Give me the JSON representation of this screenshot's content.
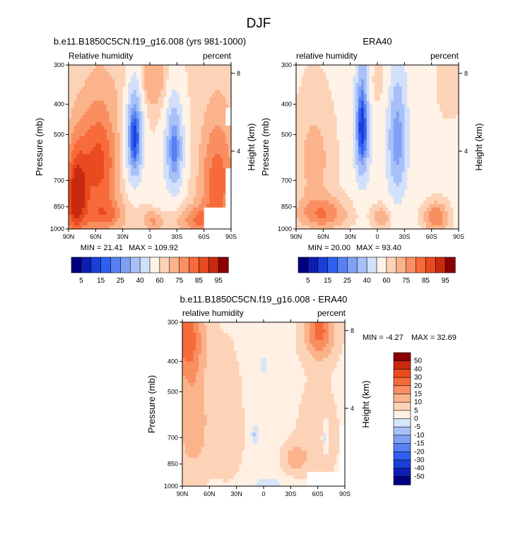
{
  "page_title": "DJF",
  "colors": {
    "main": [
      "#00007f",
      "#0d1fb2",
      "#1a3fd9",
      "#2f5ff0",
      "#5680f3",
      "#7fa0f5",
      "#a8c0f8",
      "#d2e0fb",
      "#fff2e6",
      "#fdd3b8",
      "#fbb38b",
      "#f98f60",
      "#f76a3a",
      "#e94a1f",
      "#c82a10",
      "#8b0000"
    ],
    "diff": [
      "#00007f",
      "#0d1fb2",
      "#1a3fd9",
      "#2f5ff0",
      "#5680f3",
      "#7fa0f5",
      "#a8c0f8",
      "#d6e5fa",
      "#fff0e3",
      "#fdd3b8",
      "#fbb38b",
      "#f98f60",
      "#f76a3a",
      "#e94a1f",
      "#c82a10",
      "#8b0000"
    ],
    "missing": "#ffffff"
  },
  "chart_data": [
    {
      "type": "heatmap",
      "title": "b.e11.B1850C5CN.f19_g16.008 (yrs 981-1000)",
      "left_label": "Relative humidity",
      "right_label": "percent",
      "ylabel": "Pressure (mb)",
      "ylabel_right": "Height (km)",
      "x_ticks": [
        "90N",
        "60N",
        "30N",
        "0",
        "30S",
        "60S",
        "90S"
      ],
      "x_range": [
        90,
        -90
      ],
      "y_ticks": [
        "300",
        "400",
        "500",
        "700",
        "850",
        "1000"
      ],
      "y_tick_values": [
        300,
        400,
        500,
        700,
        850,
        1000
      ],
      "y_range": [
        300,
        1000
      ],
      "height_ticks": [
        "8",
        "4"
      ],
      "height_tick_values": [
        8,
        4
      ],
      "min_text": "MIN = 21.41",
      "max_text": "MAX = 109.92",
      "field": "model",
      "colorbar": {
        "orientation": "horizontal",
        "labels": [
          "5",
          "15",
          "25",
          "40",
          "60",
          "75",
          "85",
          "95"
        ]
      }
    },
    {
      "type": "heatmap",
      "title": "ERA40",
      "left_label": "relative humidity",
      "right_label": "percent",
      "ylabel": "Pressure (mb)",
      "ylabel_right": "Height (km)",
      "x_ticks": [
        "90N",
        "60N",
        "30N",
        "0",
        "30S",
        "60S",
        "90S"
      ],
      "x_range": [
        90,
        -90
      ],
      "y_ticks": [
        "300",
        "400",
        "500",
        "700",
        "850",
        "1000"
      ],
      "y_tick_values": [
        300,
        400,
        500,
        700,
        850,
        1000
      ],
      "y_range": [
        300,
        1000
      ],
      "height_ticks": [
        "8",
        "4"
      ],
      "height_tick_values": [
        8,
        4
      ],
      "min_text": "MIN = 20.00",
      "max_text": "MAX = 93.40",
      "field": "era",
      "colorbar": {
        "orientation": "horizontal",
        "labels": [
          "5",
          "15",
          "25",
          "40",
          "60",
          "75",
          "85",
          "95"
        ]
      }
    },
    {
      "type": "heatmap",
      "title": "b.e11.B1850C5CN.f19_g16.008 - ERA40",
      "left_label": "relative humidity",
      "right_label": "percent",
      "ylabel": "Pressure (mb)",
      "ylabel_right": "Height (km)",
      "x_ticks": [
        "90N",
        "60N",
        "30N",
        "0",
        "30S",
        "60S",
        "90S"
      ],
      "x_range": [
        90,
        -90
      ],
      "y_ticks": [
        "300",
        "400",
        "500",
        "700",
        "850",
        "1000"
      ],
      "y_tick_values": [
        300,
        400,
        500,
        700,
        850,
        1000
      ],
      "y_range": [
        300,
        1000
      ],
      "height_ticks": [
        "8",
        "4"
      ],
      "height_tick_values": [
        8,
        4
      ],
      "min_text": "MIN = -4.27",
      "max_text": "MAX = 32.69",
      "field": "diff",
      "colorbar": {
        "orientation": "vertical",
        "labels": [
          "50",
          "40",
          "30",
          "20",
          "15",
          "10",
          "5",
          "0",
          "-5",
          "-10",
          "-15",
          "-20",
          "-30",
          "-40",
          "-50"
        ]
      }
    }
  ]
}
